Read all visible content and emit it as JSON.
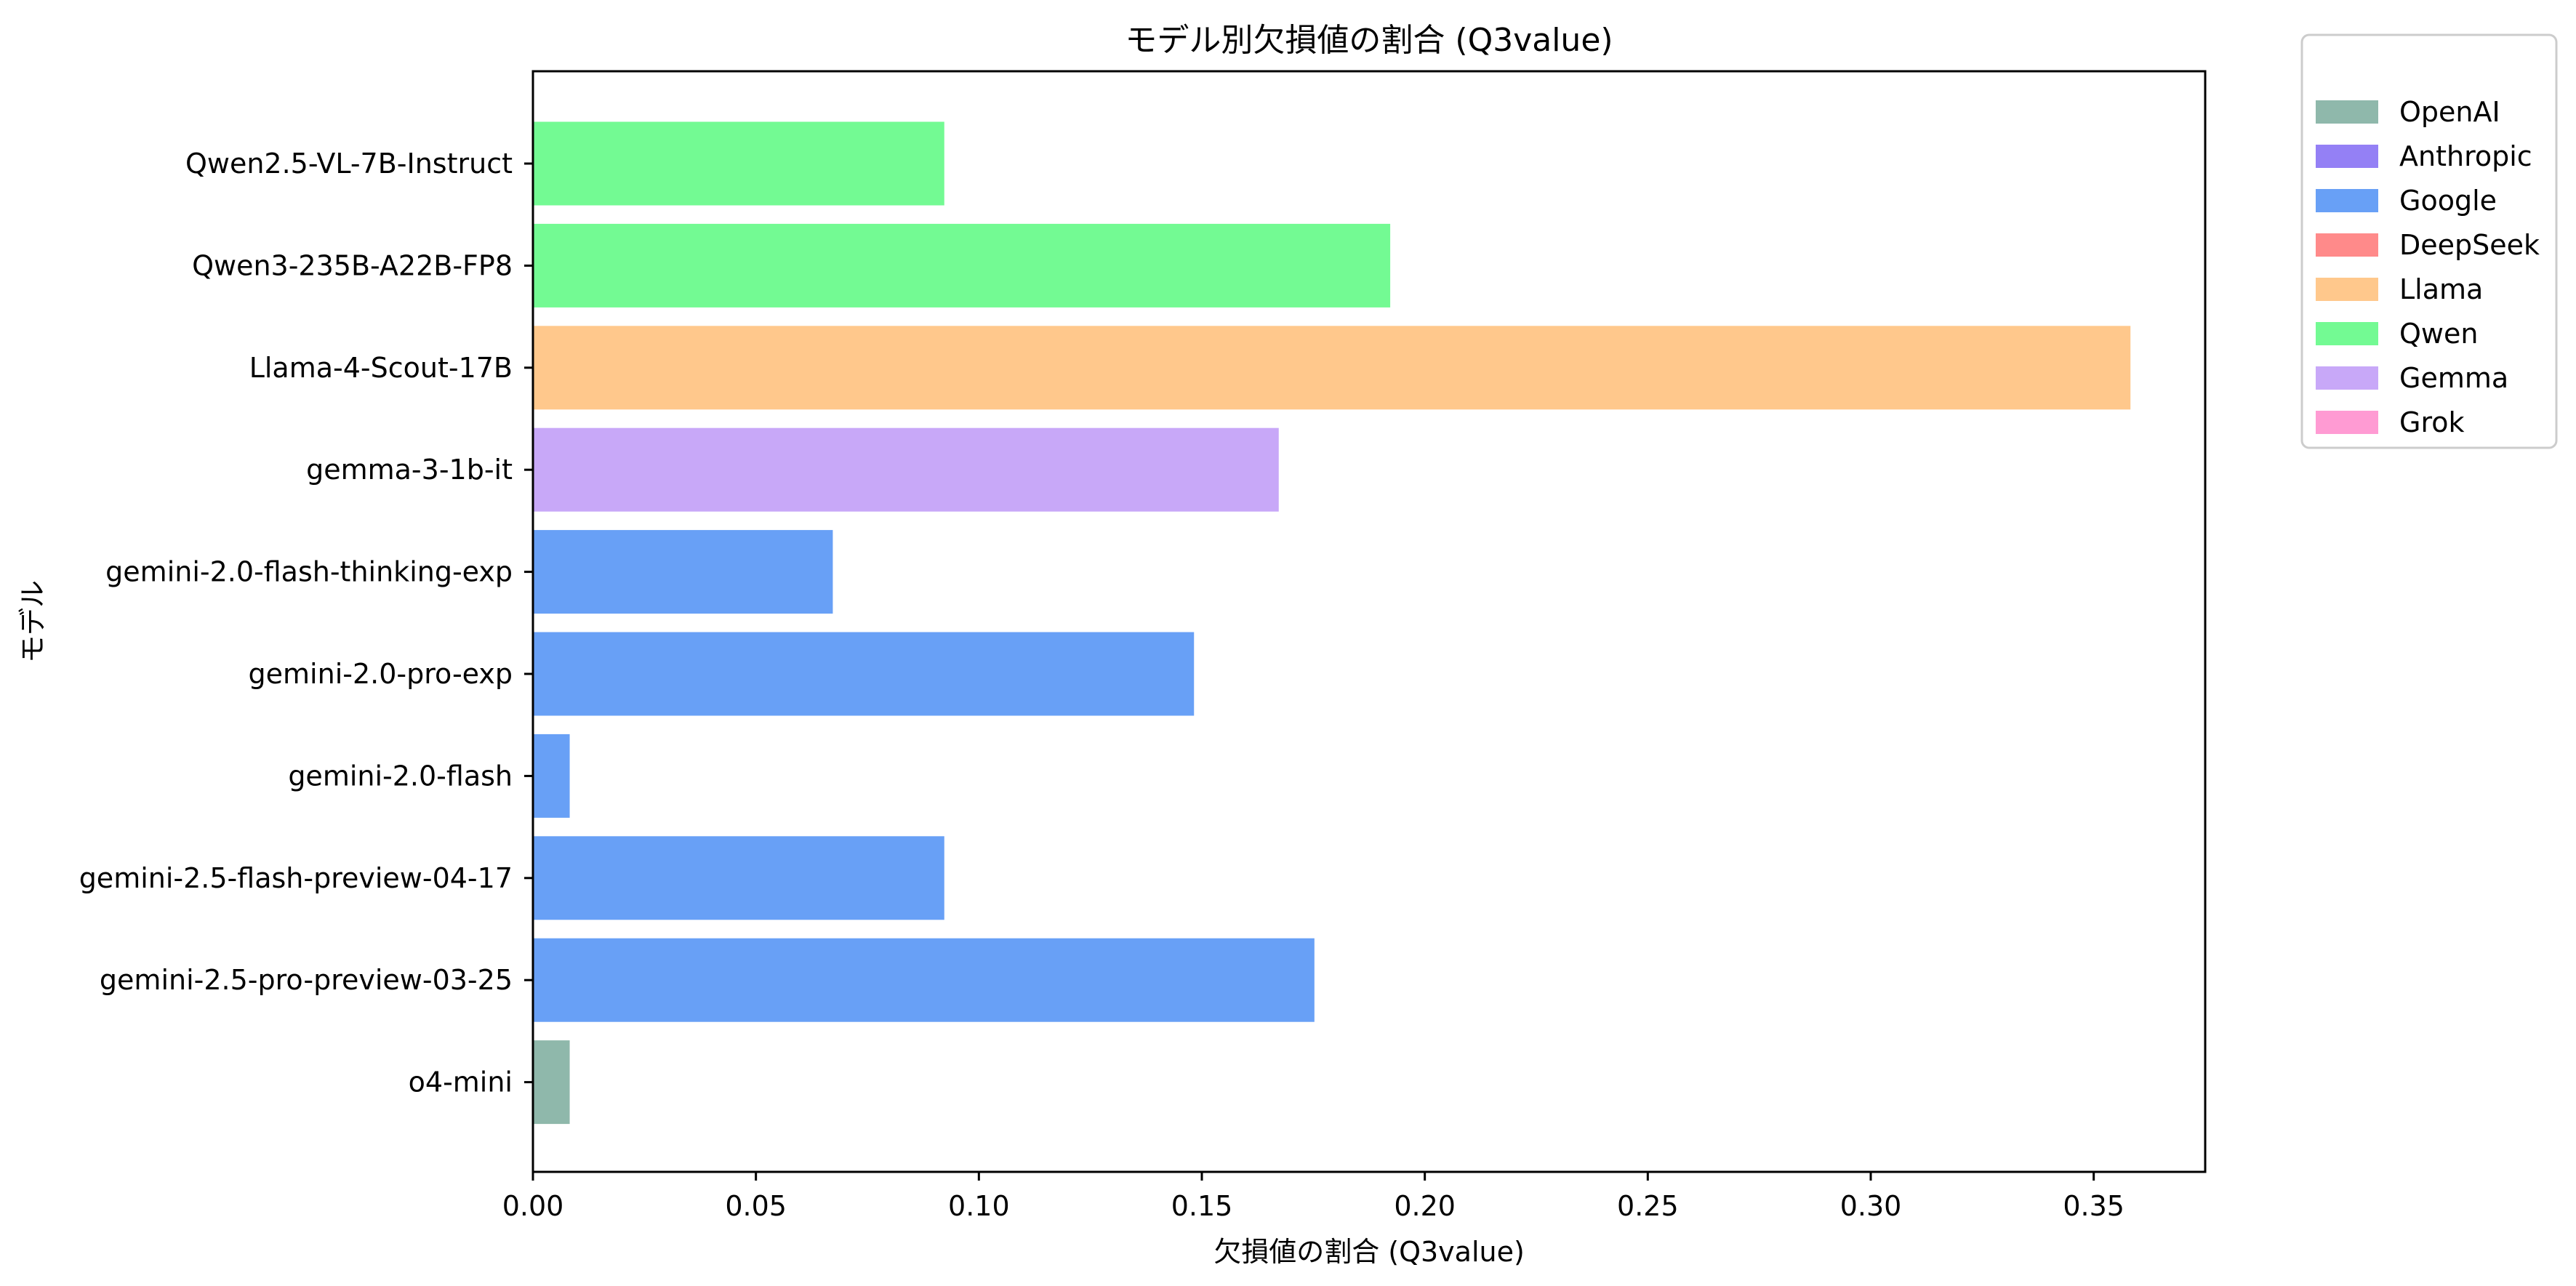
{
  "chart_data": {
    "type": "bar",
    "orientation": "horizontal",
    "title": "モデル別欠損値の割合 (Q3value)",
    "xlabel": "欠損値の割合 (Q3value)",
    "ylabel": "モデル",
    "xlim": [
      0,
      0.375
    ],
    "xticks": [
      "0.00",
      "0.05",
      "0.10",
      "0.15",
      "0.20",
      "0.25",
      "0.30",
      "0.35"
    ],
    "xtick_values": [
      0,
      0.05,
      0.1,
      0.15,
      0.2,
      0.25,
      0.3,
      0.35
    ],
    "grid": false,
    "legend_position": "outside-top-right",
    "categories": [
      "Qwen2.5-VL-7B-Instruct",
      "Qwen3-235B-A22B-FP8",
      "Llama-4-Scout-17B",
      "gemma-3-1b-it",
      "gemini-2.0-flash-thinking-exp",
      "gemini-2.0-pro-exp",
      "gemini-2.0-flash",
      "gemini-2.5-flash-preview-04-17",
      "gemini-2.5-pro-preview-03-25",
      "o4-mini"
    ],
    "values": [
      0.092,
      0.192,
      0.358,
      0.167,
      0.067,
      0.148,
      0.008,
      0.092,
      0.175,
      0.008
    ],
    "groups": [
      "Qwen",
      "Qwen",
      "Llama",
      "Gemma",
      "Google",
      "Google",
      "Google",
      "Google",
      "Google",
      "OpenAI"
    ],
    "legend": [
      {
        "name": "OpenAI",
        "color": "#8fb8ab"
      },
      {
        "name": "Anthropic",
        "color": "#9480f5"
      },
      {
        "name": "Google",
        "color": "#68a0f6"
      },
      {
        "name": "DeepSeek",
        "color": "#ff8a8a"
      },
      {
        "name": "Llama",
        "color": "#ffc88c"
      },
      {
        "name": "Qwen",
        "color": "#73fa93"
      },
      {
        "name": "Gemma",
        "color": "#c8a8f8"
      },
      {
        "name": "Grok",
        "color": "#ff9bd3"
      }
    ]
  }
}
